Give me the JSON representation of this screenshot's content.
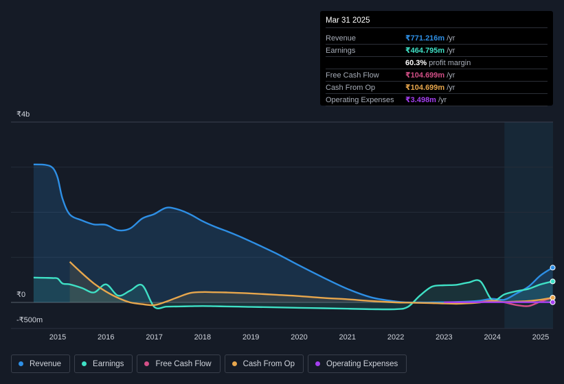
{
  "chart_data": {
    "type": "area",
    "x": [
      2014.5,
      2014.75,
      2014.9,
      2015.0,
      2015.1,
      2015.25,
      2015.5,
      2015.75,
      2016.0,
      2016.25,
      2016.5,
      2016.75,
      2017.0,
      2017.25,
      2017.5,
      2017.75,
      2018.0,
      2018.25,
      2018.5,
      2018.75,
      2019.0,
      2019.5,
      2020.0,
      2020.5,
      2021.0,
      2021.5,
      2022.0,
      2022.25,
      2022.5,
      2022.75,
      2023.0,
      2023.25,
      2023.5,
      2023.75,
      2024.0,
      2024.25,
      2024.5,
      2024.75,
      2025.0,
      2025.25
    ],
    "y_range": [
      -500,
      4000
    ],
    "y_ticks": [
      {
        "value": 4000,
        "label": "₹4b"
      },
      {
        "value": 0,
        "label": "₹0"
      },
      {
        "value": -500,
        "label": "-₹500m"
      }
    ],
    "x_ticks": [
      "2015",
      "2016",
      "2017",
      "2018",
      "2019",
      "2020",
      "2021",
      "2022",
      "2023",
      "2024",
      "2025"
    ],
    "forecast_start": 2024.25,
    "series": [
      {
        "name": "Revenue",
        "color": "#2e8fe5",
        "fill": true,
        "values": [
          3060,
          3050,
          2980,
          2760,
          2300,
          1950,
          1820,
          1730,
          1720,
          1600,
          1640,
          1860,
          1960,
          2100,
          2060,
          1950,
          1800,
          1680,
          1580,
          1470,
          1350,
          1100,
          820,
          550,
          300,
          110,
          20,
          0,
          0,
          0,
          5,
          10,
          20,
          40,
          80,
          60,
          200,
          350,
          600,
          771
        ]
      },
      {
        "name": "Earnings",
        "color": "#3fe0c5",
        "fill": true,
        "values": [
          550,
          545,
          540,
          530,
          420,
          400,
          320,
          220,
          400,
          150,
          260,
          380,
          -100,
          -95,
          -90,
          -85,
          -80,
          -85,
          -90,
          -95,
          -100,
          -110,
          -120,
          -130,
          -140,
          -150,
          -150,
          -100,
          150,
          350,
          380,
          390,
          440,
          470,
          50,
          180,
          250,
          300,
          400,
          465
        ]
      },
      {
        "name": "Free Cash Flow",
        "color": "#d34f87",
        "fill": false,
        "values": [
          null,
          null,
          null,
          null,
          null,
          null,
          null,
          null,
          null,
          null,
          null,
          null,
          null,
          null,
          null,
          null,
          null,
          null,
          null,
          null,
          null,
          null,
          null,
          null,
          null,
          null,
          null,
          null,
          null,
          null,
          -5,
          -10,
          -5,
          10,
          40,
          0,
          -60,
          -80,
          20,
          105
        ]
      },
      {
        "name": "Cash From Op",
        "color": "#e8a74d",
        "fill": true,
        "values": [
          null,
          null,
          null,
          null,
          null,
          900,
          650,
          420,
          240,
          100,
          0,
          -40,
          -60,
          20,
          120,
          210,
          230,
          225,
          220,
          210,
          200,
          170,
          140,
          100,
          70,
          30,
          0,
          -5,
          -10,
          -15,
          -25,
          -30,
          -20,
          0,
          30,
          10,
          20,
          30,
          60,
          105
        ]
      },
      {
        "name": "Operating Expenses",
        "color": "#a43ff0",
        "fill": false,
        "values": [
          null,
          null,
          null,
          null,
          null,
          null,
          null,
          null,
          null,
          null,
          null,
          null,
          null,
          null,
          null,
          null,
          null,
          null,
          null,
          null,
          null,
          null,
          null,
          null,
          null,
          null,
          null,
          null,
          null,
          null,
          5,
          5,
          5,
          5,
          5,
          5,
          4,
          4,
          4,
          3.5
        ]
      }
    ]
  },
  "tooltip": {
    "date": "Mar 31 2025",
    "rows": [
      {
        "label": "Revenue",
        "value": "₹771.216m",
        "unit": "/yr",
        "color": "#2e8fe5"
      },
      {
        "label": "Earnings",
        "value": "₹464.795m",
        "unit": "/yr",
        "color": "#3fe0c5"
      },
      {
        "label": "",
        "value": "60.3%",
        "unit": "profit margin",
        "color": "#ffffff"
      },
      {
        "label": "Free Cash Flow",
        "value": "₹104.699m",
        "unit": "/yr",
        "color": "#d34f87"
      },
      {
        "label": "Cash From Op",
        "value": "₹104.699m",
        "unit": "/yr",
        "color": "#e8a74d"
      },
      {
        "label": "Operating Expenses",
        "value": "₹3.498m",
        "unit": "/yr",
        "color": "#a43ff0"
      }
    ]
  },
  "legend": [
    {
      "label": "Revenue",
      "color": "#2e8fe5"
    },
    {
      "label": "Earnings",
      "color": "#3fe0c5"
    },
    {
      "label": "Free Cash Flow",
      "color": "#d34f87"
    },
    {
      "label": "Cash From Op",
      "color": "#e8a74d"
    },
    {
      "label": "Operating Expenses",
      "color": "#a43ff0"
    }
  ]
}
